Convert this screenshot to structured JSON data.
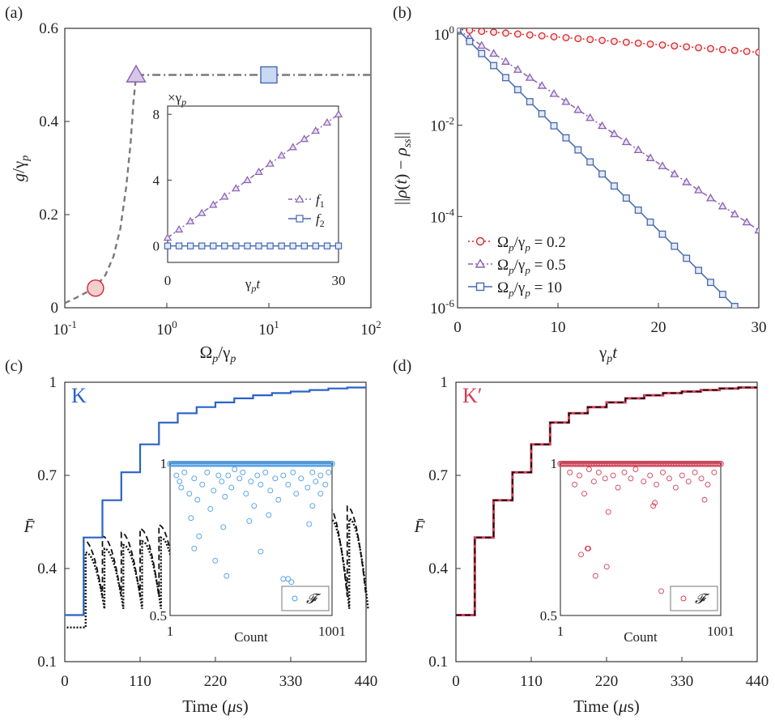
{
  "panels": {
    "a": {
      "letter": "(a)",
      "xlabel": "Ω_p/γ_p",
      "ylabel": "g/γ_p"
    },
    "b": {
      "letter": "(b)",
      "xlabel": "γ_p t",
      "ylabel": "||ρ(t) − ρ_ss||"
    },
    "c": {
      "letter": "(c)",
      "tag": "K",
      "xlabel": "Time (μs)",
      "ylabel": "F̄"
    },
    "d": {
      "letter": "(d)",
      "tag": "K′",
      "xlabel": "Time (μs)",
      "ylabel": "F̄"
    }
  },
  "chart_data": [
    {
      "id": "a",
      "type": "line",
      "xscale": "log",
      "xlim": [
        0.1,
        100
      ],
      "ylim": [
        0,
        0.6
      ],
      "xticks": [
        "10^-1",
        "10^0",
        "10^1",
        "10^2"
      ],
      "yticks": [
        0,
        0.2,
        0.4,
        0.6
      ],
      "xlabel": "Ω_p/γ_p",
      "ylabel": "g/γ_p",
      "series": [
        {
          "style": "dashed",
          "x": [
            0.1,
            0.13,
            0.16,
            0.2,
            0.25,
            0.3,
            0.35,
            0.4,
            0.44,
            0.47,
            0.5
          ],
          "y": [
            0.01,
            0.022,
            0.032,
            0.045,
            0.07,
            0.11,
            0.17,
            0.26,
            0.35,
            0.44,
            0.5
          ]
        },
        {
          "style": "dash-dot",
          "x": [
            0.5,
            100
          ],
          "y": [
            0.5,
            0.5
          ]
        }
      ],
      "markers": [
        {
          "shape": "circle",
          "x": 0.2,
          "y": 0.042,
          "color": "#f2cfcf",
          "stroke": "#d9252a"
        },
        {
          "shape": "triangle",
          "x": 0.5,
          "y": 0.5,
          "color": "#d7c6ea",
          "stroke": "#8a60b0"
        },
        {
          "shape": "square",
          "x": 10,
          "y": 0.5,
          "color": "#c9d8f3",
          "stroke": "#4568b0"
        }
      ],
      "inset": {
        "type": "line",
        "xlim": [
          0,
          30
        ],
        "ylim": [
          -1,
          8.5
        ],
        "xticks": [
          0,
          30
        ],
        "yticks": [
          0,
          4,
          8
        ],
        "xlabel": "γ_p t",
        "ylabel_note": "×γ_p",
        "x": [
          0,
          2,
          4,
          6,
          8,
          10,
          12,
          14,
          16,
          18,
          20,
          22,
          24,
          26,
          28,
          30
        ],
        "series": [
          {
            "name": "f_1",
            "color": "#8a60b0",
            "marker": "triangle",
            "values": [
              0.5,
              1,
              1.5,
              2,
              2.5,
              3,
              3.5,
              4,
              4.5,
              5,
              5.5,
              6,
              6.5,
              7,
              7.5,
              8
            ]
          },
          {
            "name": "f_2",
            "color": "#4568b0",
            "marker": "square",
            "values": [
              0,
              0,
              0,
              0,
              0,
              0,
              0,
              0,
              0,
              0,
              0,
              0,
              0,
              0,
              0,
              0
            ]
          }
        ]
      }
    },
    {
      "id": "b",
      "type": "line",
      "yscale": "log",
      "xlim": [
        0,
        30
      ],
      "ylim": [
        1e-06,
        2
      ],
      "xticks": [
        0,
        10,
        20,
        30
      ],
      "yticks": [
        "10^0",
        "10^-2",
        "10^-4",
        "10^-6"
      ],
      "xlabel": "γ_p t",
      "ylabel": "||ρ(t) − ρ_ss||",
      "legend": "bottom-left",
      "x": [
        0,
        1.2,
        2.4,
        3.6,
        4.8,
        6,
        7.2,
        8.4,
        9.6,
        10.8,
        12,
        13.2,
        14.4,
        15.6,
        16.8,
        18,
        19.2,
        20.4,
        21.6,
        22.8,
        24,
        25.2,
        26.4,
        27.6,
        28.8,
        30
      ],
      "series": [
        {
          "name": "Ω_p/γ_p = 0.2",
          "color": "#d9252a",
          "marker": "circle",
          "style": "dotted",
          "log_decay_per_unit": 0.0167
        },
        {
          "name": "Ω_p/γ_p = 0.5",
          "color": "#8a60b0",
          "marker": "triangle",
          "style": "dash-dot",
          "log_decay_per_unit": 0.1467
        },
        {
          "name": "Ω_p/γ_p = 10",
          "color": "#4568b0",
          "marker": "square",
          "style": "solid",
          "log_decay_per_unit": 0.22
        }
      ]
    },
    {
      "id": "c",
      "type": "line",
      "xlim": [
        0,
        440
      ],
      "ylim": [
        0.1,
        1
      ],
      "xticks": [
        0,
        110,
        220,
        330,
        440
      ],
      "yticks": [
        0.1,
        0.4,
        0.7,
        1
      ],
      "xlabel": "Time (μs)",
      "ylabel": "F̄",
      "step_times": [
        27.5,
        55,
        82.5,
        110,
        137.5,
        165,
        192.5,
        220,
        247.5,
        275,
        302.5,
        330,
        357.5,
        385,
        412.5,
        440
      ],
      "step_values": [
        0.25,
        0.5,
        0.62,
        0.71,
        0.8,
        0.87,
        0.9,
        0.92,
        0.935,
        0.948,
        0.958,
        0.965,
        0.97,
        0.975,
        0.98,
        0.983,
        0.985
      ],
      "series_colors": {
        "solid": "#2a62c9",
        "dashed": "#111111",
        "dotted": "#111111"
      },
      "inset": {
        "type": "scatter",
        "xlim": [
          1,
          1001
        ],
        "ylim": [
          0.5,
          1
        ],
        "xticks": [
          1,
          1001
        ],
        "yticks": [
          0.5,
          1
        ],
        "xlabel": "Count",
        "legend": "𝓕",
        "color": "#4a9de8",
        "outliers": [
          [
            40,
            0.96
          ],
          [
            60,
            0.94
          ],
          [
            70,
            0.92
          ],
          [
            90,
            0.97
          ],
          [
            120,
            0.9
          ],
          [
            150,
            0.95
          ],
          [
            170,
            0.88
          ],
          [
            200,
            0.93
          ],
          [
            230,
            0.97
          ],
          [
            250,
            0.85
          ],
          [
            270,
            0.91
          ],
          [
            300,
            0.96
          ],
          [
            320,
            0.94
          ],
          [
            340,
            0.89
          ],
          [
            360,
            0.96
          ],
          [
            380,
            0.92
          ],
          [
            400,
            0.98
          ],
          [
            430,
            0.95
          ],
          [
            450,
            0.97
          ],
          [
            470,
            0.9
          ],
          [
            500,
            0.94
          ],
          [
            520,
            0.86
          ],
          [
            540,
            0.96
          ],
          [
            560,
            0.93
          ],
          [
            590,
            0.97
          ],
          [
            620,
            0.91
          ],
          [
            650,
            0.95
          ],
          [
            670,
            0.88
          ],
          [
            700,
            0.96
          ],
          [
            730,
            0.93
          ],
          [
            760,
            0.97
          ],
          [
            780,
            0.9
          ],
          [
            810,
            0.95
          ],
          [
            850,
            0.92
          ],
          [
            880,
            0.97
          ],
          [
            900,
            0.94
          ],
          [
            930,
            0.96
          ],
          [
            960,
            0.93
          ],
          [
            980,
            0.97
          ],
          [
            130,
            0.82
          ],
          [
            180,
            0.76
          ],
          [
            330,
            0.79
          ],
          [
            490,
            0.81
          ],
          [
            610,
            0.83
          ],
          [
            860,
            0.8
          ],
          [
            150,
            0.72
          ],
          [
            280,
            0.68
          ],
          [
            350,
            0.63
          ],
          [
            560,
            0.71
          ],
          [
            700,
            0.62
          ],
          [
            730,
            0.62
          ],
          [
            750,
            0.61
          ],
          [
            880,
            0.86
          ],
          [
            930,
            0.9
          ]
        ]
      }
    },
    {
      "id": "d",
      "type": "line",
      "xlim": [
        0,
        440
      ],
      "ylim": [
        0.1,
        1
      ],
      "xticks": [
        0,
        110,
        220,
        330,
        440
      ],
      "yticks": [
        0.1,
        0.4,
        0.7,
        1
      ],
      "xlabel": "Time (μs)",
      "ylabel": "F̄",
      "step_times": [
        27.5,
        55,
        82.5,
        110,
        137.5,
        165,
        192.5,
        220,
        247.5,
        275,
        302.5,
        330,
        357.5,
        385,
        412.5,
        440
      ],
      "step_values": [
        0.25,
        0.5,
        0.62,
        0.71,
        0.8,
        0.87,
        0.9,
        0.92,
        0.935,
        0.948,
        0.958,
        0.965,
        0.97,
        0.975,
        0.98,
        0.983,
        0.985
      ],
      "series_colors": {
        "solid": "#d43d55",
        "dashed": "#111111"
      },
      "inset": {
        "type": "scatter",
        "xlim": [
          1,
          1001
        ],
        "ylim": [
          0.5,
          1
        ],
        "xticks": [
          1,
          1001
        ],
        "yticks": [
          0.5,
          1
        ],
        "xlabel": "Count",
        "legend": "𝓕",
        "color": "#d43d55",
        "outliers": [
          [
            60,
            0.97
          ],
          [
            90,
            0.93
          ],
          [
            120,
            0.96
          ],
          [
            150,
            0.9
          ],
          [
            180,
            0.98
          ],
          [
            210,
            0.94
          ],
          [
            240,
            0.97
          ],
          [
            280,
            0.95
          ],
          [
            300,
            0.84
          ],
          [
            330,
            0.96
          ],
          [
            360,
            0.92
          ],
          [
            400,
            0.97
          ],
          [
            440,
            0.95
          ],
          [
            470,
            0.98
          ],
          [
            520,
            0.94
          ],
          [
            560,
            0.96
          ],
          [
            600,
            0.93
          ],
          [
            640,
            0.97
          ],
          [
            680,
            0.95
          ],
          [
            720,
            0.92
          ],
          [
            760,
            0.96
          ],
          [
            800,
            0.94
          ],
          [
            840,
            0.97
          ],
          [
            880,
            0.95
          ],
          [
            920,
            0.93
          ],
          [
            960,
            0.97
          ],
          [
            170,
            0.72
          ],
          [
            175,
            0.72
          ],
          [
            580,
            0.86
          ],
          [
            590,
            0.87
          ],
          [
            900,
            0.88
          ],
          [
            130,
            0.7
          ],
          [
            220,
            0.63
          ],
          [
            290,
            0.66
          ],
          [
            630,
            0.58
          ],
          [
            820,
            0.58
          ]
        ]
      }
    }
  ]
}
